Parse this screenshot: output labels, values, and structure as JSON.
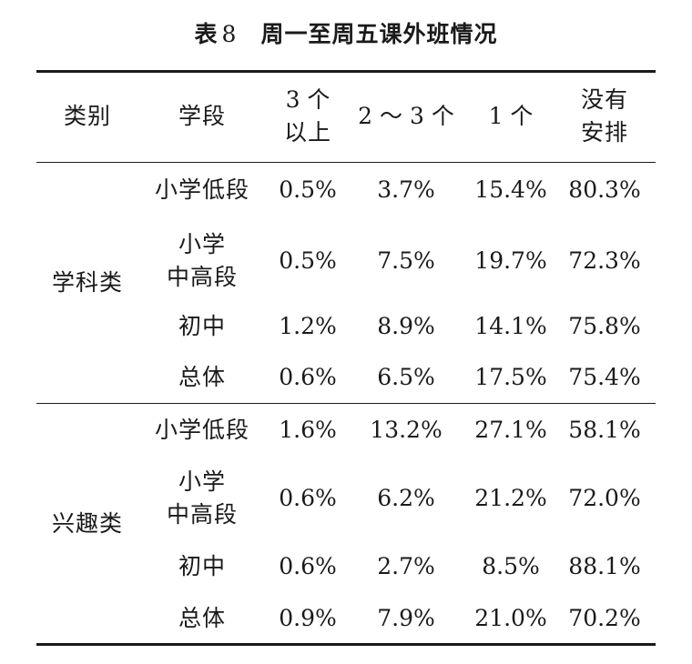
{
  "caption": {
    "label": "表",
    "number": "8",
    "title": "周一至周五课外班情况"
  },
  "headers": {
    "category": "类别",
    "stage": "学段",
    "c3_line1": "3 个",
    "c3_line2": "以上",
    "c4": "2 ～ 3 个",
    "c5": "1 个",
    "c6_line1": "没有",
    "c6_line2": "安排"
  },
  "groups": [
    {
      "name": "学科类",
      "rows": [
        {
          "stage1": "小学低段",
          "stage2": "",
          "v": [
            "0.5%",
            "3.7%",
            "15.4%",
            "80.3%"
          ]
        },
        {
          "stage1": "小学",
          "stage2": "中高段",
          "v": [
            "0.5%",
            "7.5%",
            "19.7%",
            "72.3%"
          ]
        },
        {
          "stage1": "初中",
          "stage2": "",
          "v": [
            "1.2%",
            "8.9%",
            "14.1%",
            "75.8%"
          ]
        },
        {
          "stage1": "总体",
          "stage2": "",
          "v": [
            "0.6%",
            "6.5%",
            "17.5%",
            "75.4%"
          ]
        }
      ]
    },
    {
      "name": "兴趣类",
      "rows": [
        {
          "stage1": "小学低段",
          "stage2": "",
          "v": [
            "1.6%",
            "13.2%",
            "27.1%",
            "58.1%"
          ]
        },
        {
          "stage1": "小学",
          "stage2": "中高段",
          "v": [
            "0.6%",
            "6.2%",
            "21.2%",
            "72.0%"
          ]
        },
        {
          "stage1": "初中",
          "stage2": "",
          "v": [
            "0.6%",
            "2.7%",
            "8.5%",
            "88.1%"
          ]
        },
        {
          "stage1": "总体",
          "stage2": "",
          "v": [
            "0.9%",
            "7.9%",
            "21.0%",
            "70.2%"
          ]
        }
      ]
    }
  ]
}
